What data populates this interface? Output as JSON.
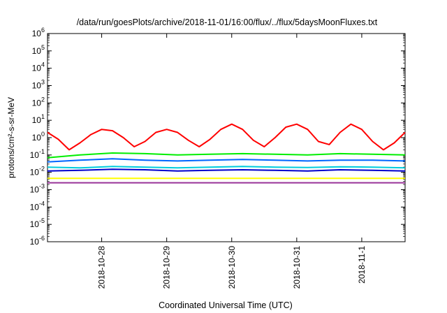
{
  "chart_data": {
    "type": "line",
    "title": "/data/run/goesPlots/archive/2018-11-01/16:00/flux/../flux/5daysMoonFluxes.txt",
    "xlabel": "Coordinated Universal Time (UTC)",
    "ylabel": "protons/cm²-s-sr-MeV",
    "y_scale": "log",
    "ylim": [
      1e-06,
      1000000.0
    ],
    "y_tick_exponents": [
      -6,
      -5,
      -4,
      -3,
      -2,
      -1,
      0,
      1,
      2,
      3,
      4,
      5,
      6
    ],
    "y_tick_base": "10",
    "x_range": [
      "2018-10-27T04:00",
      "2018-11-01T16:00"
    ],
    "x_ticks": [
      {
        "label": "2018-10-28",
        "date": "2018-10-28T00:00"
      },
      {
        "label": "2018-10-29",
        "date": "2018-10-29T00:00"
      },
      {
        "label": "2018-10-30",
        "date": "2018-10-30T00:00"
      },
      {
        "label": "2018-10-31",
        "date": "2018-10-31T00:00"
      },
      {
        "label": "2018-11-1",
        "date": "2018-11-01T00:00"
      }
    ],
    "grid": false,
    "legend": false,
    "series": [
      {
        "color": "#ff0000",
        "x": [
          "2018-10-27T04:00",
          "2018-10-27T08:00",
          "2018-10-27T12:00",
          "2018-10-27T16:00",
          "2018-10-27T20:00",
          "2018-10-28T00:00",
          "2018-10-28T04:00",
          "2018-10-28T08:00",
          "2018-10-28T12:00",
          "2018-10-28T16:00",
          "2018-10-28T20:00",
          "2018-10-29T00:00",
          "2018-10-29T04:00",
          "2018-10-29T08:00",
          "2018-10-29T12:00",
          "2018-10-29T16:00",
          "2018-10-29T20:00",
          "2018-10-30T00:00",
          "2018-10-30T04:00",
          "2018-10-30T08:00",
          "2018-10-30T12:00",
          "2018-10-30T16:00",
          "2018-10-30T20:00",
          "2018-10-31T00:00",
          "2018-10-31T04:00",
          "2018-10-31T08:00",
          "2018-10-31T12:00",
          "2018-10-31T16:00",
          "2018-10-31T20:00",
          "2018-11-01T00:00",
          "2018-11-01T04:00",
          "2018-11-01T08:00",
          "2018-11-01T12:00",
          "2018-11-01T16:00"
        ],
        "values": [
          2,
          0.8,
          0.2,
          0.5,
          1.5,
          3,
          2.5,
          1,
          0.3,
          0.6,
          2,
          3,
          2,
          0.7,
          0.3,
          0.8,
          3,
          6,
          3,
          0.7,
          0.3,
          1,
          4,
          6,
          3,
          0.6,
          0.4,
          2,
          6,
          3,
          0.6,
          0.2,
          0.5,
          2
        ]
      },
      {
        "color": "#00ee00",
        "x": [
          "2018-10-27T04:00",
          "2018-10-27T16:00",
          "2018-10-28T04:00",
          "2018-10-28T16:00",
          "2018-10-29T04:00",
          "2018-10-29T16:00",
          "2018-10-30T04:00",
          "2018-10-30T16:00",
          "2018-10-31T04:00",
          "2018-10-31T16:00",
          "2018-11-01T04:00",
          "2018-11-01T16:00"
        ],
        "values": [
          0.07,
          0.1,
          0.13,
          0.12,
          0.1,
          0.11,
          0.12,
          0.11,
          0.1,
          0.12,
          0.11,
          0.1
        ]
      },
      {
        "color": "#00ccdd",
        "x": [
          "2018-10-27T04:00",
          "2018-10-27T16:00",
          "2018-10-28T04:00",
          "2018-10-28T16:00",
          "2018-10-29T04:00",
          "2018-10-29T16:00",
          "2018-10-30T04:00",
          "2018-10-30T16:00",
          "2018-10-31T04:00",
          "2018-10-31T16:00",
          "2018-11-01T04:00",
          "2018-11-01T16:00"
        ],
        "values": [
          0.02,
          0.018,
          0.022,
          0.02,
          0.018,
          0.02,
          0.022,
          0.02,
          0.019,
          0.021,
          0.02,
          0.018
        ]
      },
      {
        "color": "#0066ff",
        "x": [
          "2018-10-27T04:00",
          "2018-10-27T16:00",
          "2018-10-28T04:00",
          "2018-10-28T16:00",
          "2018-10-29T04:00",
          "2018-10-29T16:00",
          "2018-10-30T04:00",
          "2018-10-30T16:00",
          "2018-10-31T04:00",
          "2018-10-31T16:00",
          "2018-11-01T04:00",
          "2018-11-01T16:00"
        ],
        "values": [
          0.04,
          0.05,
          0.06,
          0.05,
          0.045,
          0.05,
          0.055,
          0.05,
          0.045,
          0.05,
          0.05,
          0.045
        ]
      },
      {
        "color": "#0000cc",
        "x": [
          "2018-10-27T04:00",
          "2018-10-27T16:00",
          "2018-10-28T04:00",
          "2018-10-28T16:00",
          "2018-10-29T04:00",
          "2018-10-29T16:00",
          "2018-10-30T04:00",
          "2018-10-30T16:00",
          "2018-10-31T04:00",
          "2018-10-31T16:00",
          "2018-11-01T04:00",
          "2018-11-01T16:00"
        ],
        "values": [
          0.012,
          0.013,
          0.015,
          0.014,
          0.012,
          0.013,
          0.014,
          0.013,
          0.012,
          0.014,
          0.013,
          0.012
        ]
      },
      {
        "color": "#ffff00",
        "x": [
          "2018-10-27T04:00",
          "2018-10-27T16:00",
          "2018-10-28T04:00",
          "2018-10-28T16:00",
          "2018-10-29T04:00",
          "2018-10-29T16:00",
          "2018-10-30T04:00",
          "2018-10-30T16:00",
          "2018-10-31T04:00",
          "2018-10-31T16:00",
          "2018-11-01T04:00",
          "2018-11-01T16:00"
        ],
        "values": [
          0.0045,
          0.0045,
          0.0045,
          0.0045,
          0.0045,
          0.0045,
          0.0045,
          0.0045,
          0.0045,
          0.0045,
          0.0045,
          0.0045
        ]
      },
      {
        "color": "#993399",
        "x": [
          "2018-10-27T04:00",
          "2018-10-27T16:00",
          "2018-10-28T04:00",
          "2018-10-28T16:00",
          "2018-10-29T04:00",
          "2018-10-29T16:00",
          "2018-10-30T04:00",
          "2018-10-30T16:00",
          "2018-10-31T04:00",
          "2018-10-31T16:00",
          "2018-11-01T04:00",
          "2018-11-01T16:00"
        ],
        "values": [
          0.0025,
          0.0025,
          0.0025,
          0.0025,
          0.0025,
          0.0025,
          0.0025,
          0.0025,
          0.0025,
          0.0025,
          0.0025,
          0.0025
        ]
      }
    ]
  }
}
